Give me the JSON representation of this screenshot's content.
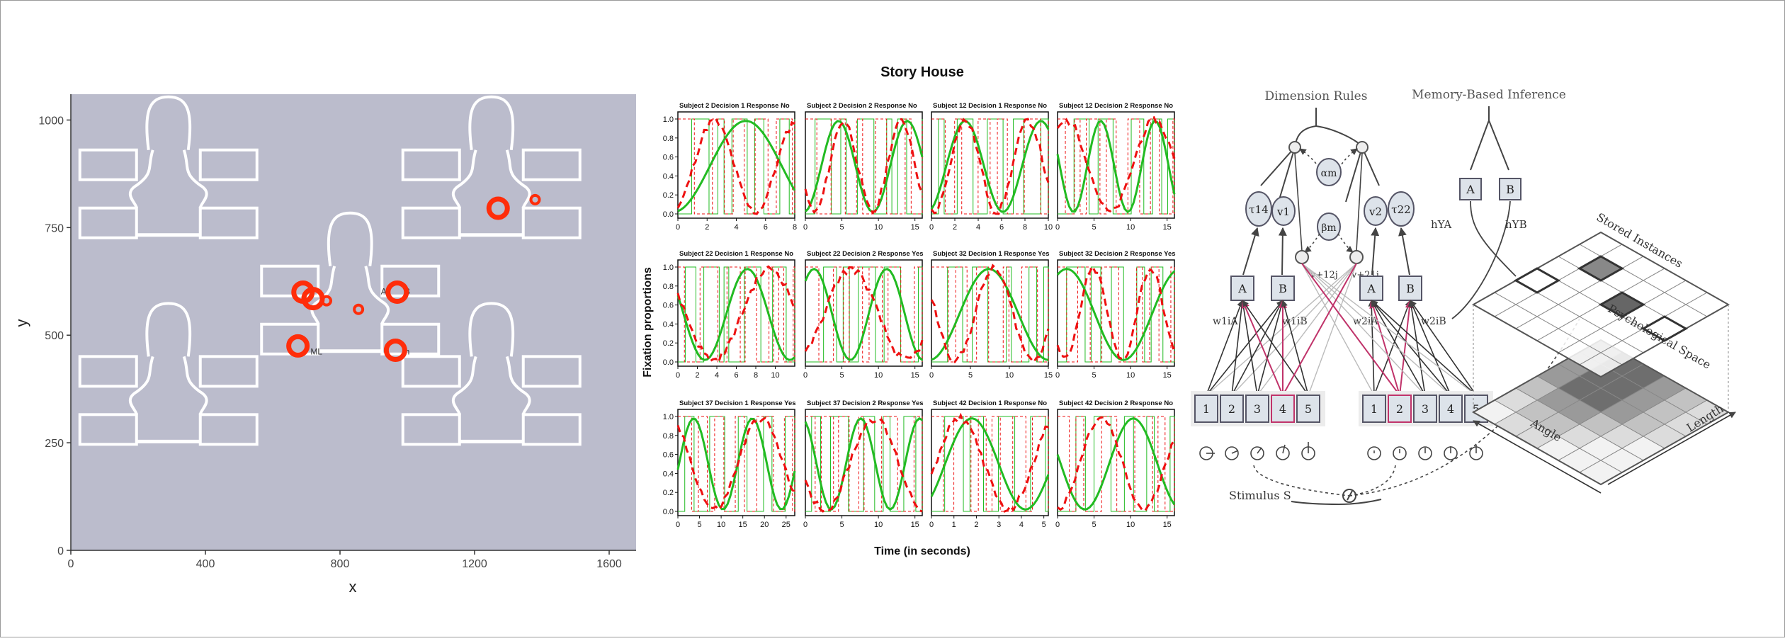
{
  "panel_a": {
    "chart_data": {
      "type": "scatter",
      "xlabel": "x",
      "ylabel": "y",
      "xlim": [
        0,
        1680
      ],
      "ylim": [
        0,
        1060
      ],
      "xticks": [
        0,
        400,
        800,
        1200,
        1600
      ],
      "yticks": [
        0,
        250,
        500,
        750,
        1000
      ],
      "background": "#bbbccc",
      "marker_color": "#ff2d0a",
      "houses": [
        {
          "cx": 290,
          "floor": 700
        },
        {
          "cx": 1250,
          "floor": 700
        },
        {
          "cx": 290,
          "floor": 220
        },
        {
          "cx": 1250,
          "floor": 220
        },
        {
          "cx": 830,
          "floor": 430
        }
      ],
      "room_labels": [
        {
          "text": "A",
          "x": 930,
          "y": 595
        },
        {
          "text": "B",
          "x": 1000,
          "y": 595
        },
        {
          "text": "ML",
          "x": 730,
          "y": 455
        },
        {
          "text": "h",
          "x": 1000,
          "y": 455
        }
      ],
      "points": [
        {
          "x": 1270,
          "y": 795,
          "size": 3
        },
        {
          "x": 1380,
          "y": 815,
          "size": 1
        },
        {
          "x": 690,
          "y": 600,
          "size": 3
        },
        {
          "x": 720,
          "y": 585,
          "size": 3
        },
        {
          "x": 760,
          "y": 580,
          "size": 1
        },
        {
          "x": 855,
          "y": 560,
          "size": 1
        },
        {
          "x": 970,
          "y": 600,
          "size": 3
        },
        {
          "x": 675,
          "y": 475,
          "size": 3
        },
        {
          "x": 965,
          "y": 465,
          "size": 3
        }
      ]
    }
  },
  "panel_b": {
    "chart_data": {
      "type": "line",
      "title": "Story House",
      "xlabel": "Time (in seconds)",
      "ylabel": "Fixation proportions",
      "yticks": [
        "0.0",
        "0.2",
        "0.4",
        "0.6",
        "0.8",
        "1.0"
      ],
      "series_colors": {
        "green": "#22bb22",
        "red": "#ee1111"
      },
      "panels": [
        {
          "label": "Subject 2  Decision 1  Response No",
          "xmax": 8,
          "xticks": [
            0,
            2,
            4,
            6,
            8
          ]
        },
        {
          "label": "Subject 2  Decision 2  Response No",
          "xmax": 16,
          "xticks": [
            0,
            5,
            10,
            15
          ]
        },
        {
          "label": "Subject 12  Decision 1  Response No",
          "xmax": 10,
          "xticks": [
            0,
            2,
            4,
            6,
            8,
            10
          ]
        },
        {
          "label": "Subject 12  Decision 2  Response No",
          "xmax": 16,
          "xticks": [
            0,
            5,
            10,
            15
          ]
        },
        {
          "label": "Subject 22  Decision 1  Response No",
          "xmax": 12,
          "xticks": [
            0,
            2,
            4,
            6,
            8,
            10
          ]
        },
        {
          "label": "Subject 22  Decision 2  Response Yes",
          "xmax": 16,
          "xticks": [
            0,
            5,
            10,
            15
          ]
        },
        {
          "label": "Subject 32  Decision 1  Response Yes",
          "xmax": 15,
          "xticks": [
            0,
            5,
            10,
            15
          ]
        },
        {
          "label": "Subject 32  Decision 2  Response Yes",
          "xmax": 16,
          "xticks": [
            0,
            5,
            10,
            15
          ]
        },
        {
          "label": "Subject 37  Decision 1  Response Yes",
          "xmax": 27,
          "xticks": [
            0,
            5,
            10,
            15,
            20,
            25
          ]
        },
        {
          "label": "Subject 37  Decision 2  Response Yes",
          "xmax": 16,
          "xticks": [
            0,
            5,
            10,
            15
          ]
        },
        {
          "label": "Subject 42  Decision 1  Response No",
          "xmax": 5.2,
          "xticks": [
            0,
            1,
            2,
            3,
            4,
            5
          ]
        },
        {
          "label": "Subject 42  Decision 2  Response No",
          "xmax": 16,
          "xticks": [
            0,
            5,
            10,
            15
          ]
        }
      ]
    }
  },
  "panel_c": {
    "titles": {
      "left": "Dimension Rules",
      "right": "Memory-Based Inference"
    },
    "nodes": {
      "tau14": "τ14",
      "v1": "v1",
      "alpha_m": "αm",
      "beta_m": "βm",
      "v2": "v2",
      "tau22": "τ22",
      "A": "A",
      "B": "B"
    },
    "weights": {
      "w1A": "w1iA",
      "w1B": "w1iB",
      "w2A": "w2iA",
      "w2B": "w2iB",
      "v12": "v+12j",
      "v21": "v+21j",
      "hYA": "hYA",
      "hYB": "hYB"
    },
    "left_boxes": [
      "1",
      "2",
      "3",
      "4",
      "5"
    ],
    "right_boxes": [
      "1",
      "2",
      "3",
      "4",
      "5"
    ],
    "stimulus": "Stimulus S",
    "grid_labels": {
      "stored": "Stored Instances",
      "psych": "Psychological Space",
      "angle": "Angle",
      "length": "Length"
    }
  }
}
